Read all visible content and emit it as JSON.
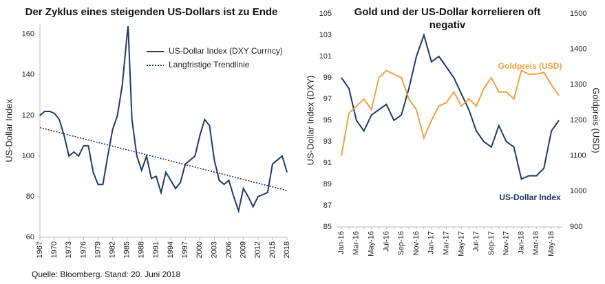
{
  "chart_data": [
    {
      "type": "line",
      "title": "Der Zyklus eines steigenden US-Dollars ist zu Ende",
      "y_label": "US-Dollar Index",
      "xlim": [
        1967,
        2018
      ],
      "xticks": [
        1967,
        1970,
        1973,
        1976,
        1979,
        1982,
        1985,
        1988,
        1991,
        1994,
        1997,
        2000,
        2003,
        2006,
        2009,
        2012,
        2015,
        2018
      ],
      "ylim": [
        60,
        165
      ],
      "yticks": [
        60,
        80,
        100,
        120,
        140,
        160
      ],
      "legend": "upper right",
      "series": [
        {
          "name": "US-Dollar Index (DXY Currncy)",
          "color": "#1f3864",
          "style": "solid",
          "x": [
            1967,
            1968,
            1969,
            1970,
            1971,
            1972,
            1973,
            1974,
            1975,
            1976,
            1977,
            1978,
            1979,
            1980,
            1981,
            1982,
            1983,
            1984,
            1985,
            1985.2,
            1986,
            1987,
            1988,
            1989,
            1990,
            1991,
            1992,
            1993,
            1994,
            1995,
            1996,
            1997,
            1998,
            1999,
            2000,
            2001,
            2002,
            2003,
            2004,
            2005,
            2006,
            2007,
            2008,
            2009,
            2010,
            2011,
            2012,
            2013,
            2014,
            2015,
            2016,
            2017,
            2018
          ],
          "values": [
            120,
            122,
            122,
            121,
            118,
            110,
            100,
            102,
            100,
            105,
            105,
            92,
            86,
            86,
            100,
            113,
            120,
            135,
            160,
            164,
            118,
            100,
            93,
            100,
            89,
            90,
            82,
            92,
            88,
            84,
            87,
            96,
            98,
            100,
            110,
            118,
            115,
            98,
            88,
            86,
            88,
            80,
            73,
            84,
            80,
            75,
            80,
            81,
            82,
            96,
            98,
            100,
            92
          ]
        },
        {
          "name": "Langfristige Trendlinie",
          "color": "#1f3864",
          "style": "dotted",
          "x": [
            1967,
            2018
          ],
          "values": [
            114,
            83
          ]
        }
      ]
    },
    {
      "type": "line",
      "title": "Gold und der US-Dollar korrelieren oft negativ",
      "y_label": "US-Dollar Index (DXY)",
      "y2_label": "Goldpreis (USD)",
      "categories": [
        "Jan-16",
        null,
        "Mar-16",
        null,
        "May-16",
        null,
        "Jul-16",
        null,
        "Sep-16",
        null,
        "Nov-16",
        null,
        "Jan-17",
        null,
        "Mar-17",
        null,
        "May-17",
        null,
        "Jul-17",
        null,
        "Sep-17",
        null,
        "Nov-17",
        null,
        "Jan-18",
        null,
        "Mar-18",
        null,
        "May-18",
        null
      ],
      "ylim": [
        85,
        105
      ],
      "yticks": [
        85,
        87,
        89,
        91,
        93,
        95,
        97,
        99,
        101,
        103,
        105
      ],
      "y2lim": [
        900,
        1500
      ],
      "y2ticks": [
        900,
        1000,
        1100,
        1200,
        1300,
        1400,
        1500
      ],
      "series": [
        {
          "name": "US-Dollar Index",
          "color": "#1f3864",
          "values": [
            99,
            98,
            95,
            94,
            95.5,
            96,
            96.5,
            95,
            95.5,
            98,
            101,
            103,
            100.5,
            101,
            100,
            99,
            97.5,
            96,
            94,
            93,
            92.5,
            94.5,
            93,
            92.5,
            89.5,
            89.8,
            89.8,
            90.5,
            94,
            95
          ]
        },
        {
          "name": "Goldpreis (USD)",
          "color": "#f0a040",
          "axis": "y2",
          "values": [
            1100,
            1220,
            1240,
            1260,
            1230,
            1320,
            1340,
            1330,
            1320,
            1260,
            1230,
            1150,
            1200,
            1240,
            1250,
            1280,
            1240,
            1260,
            1240,
            1290,
            1320,
            1280,
            1280,
            1260,
            1340,
            1330,
            1330,
            1335,
            1300,
            1270
          ]
        }
      ]
    }
  ],
  "footer": "Quelle: Bloomberg. Stand: 20. Juni 2018"
}
